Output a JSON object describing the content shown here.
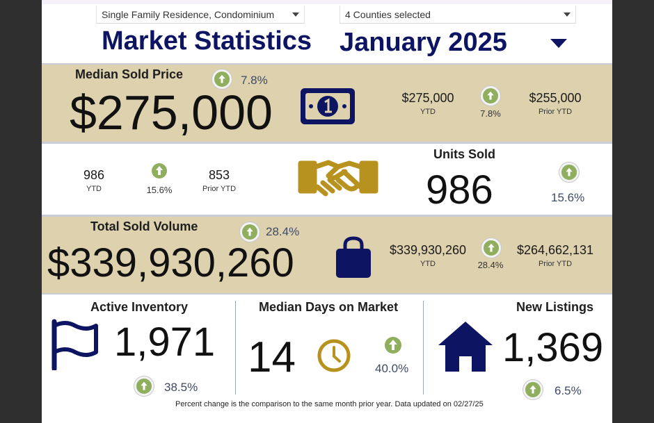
{
  "filters": {
    "property_type": "Single Family Residence, Condominium",
    "counties": "4 Counties selected"
  },
  "header": {
    "title": "Market Statistics",
    "month": "January 2025"
  },
  "median_sold_price": {
    "label": "Median Sold Price",
    "value": "$275,000",
    "change": "7.8%",
    "ytd_value": "$275,000",
    "ytd_label": "YTD",
    "ytd_change": "7.8%",
    "prior_value": "$255,000",
    "prior_label": "Prior YTD",
    "icon": "money-bill-icon"
  },
  "units_sold": {
    "label": "Units Sold",
    "value": "986",
    "change": "15.6%",
    "ytd_value": "986",
    "ytd_label": "YTD",
    "ytd_change": "15.6%",
    "prior_value": "853",
    "prior_label": "Prior YTD",
    "icon": "handshake-icon"
  },
  "total_sold_volume": {
    "label": "Total Sold Volume",
    "value": "$339,930,260",
    "change": "28.4%",
    "ytd_value": "$339,930,260",
    "ytd_label": "YTD",
    "ytd_change": "28.4%",
    "prior_value": "$264,662,131",
    "prior_label": "Prior YTD",
    "icon": "shopping-bag-icon"
  },
  "active_inventory": {
    "label": "Active Inventory",
    "value": "1,971",
    "change": "38.5%",
    "icon": "flag-icon"
  },
  "median_days_on_market": {
    "label": "Median Days on Market",
    "value": "14",
    "change": "40.0%",
    "icon": "clock-icon"
  },
  "new_listings": {
    "label": "New Listings",
    "value": "1,369",
    "change": "6.5%",
    "icon": "house-icon"
  },
  "footnote": "Percent change is the comparison to the same month prior year. Data updated on 02/27/25",
  "colors": {
    "navy": "#0d1462",
    "tan": "#ddd1ae",
    "gold": "#b8921e",
    "green": "#8fae5e",
    "frame": "#2f2f2f"
  }
}
